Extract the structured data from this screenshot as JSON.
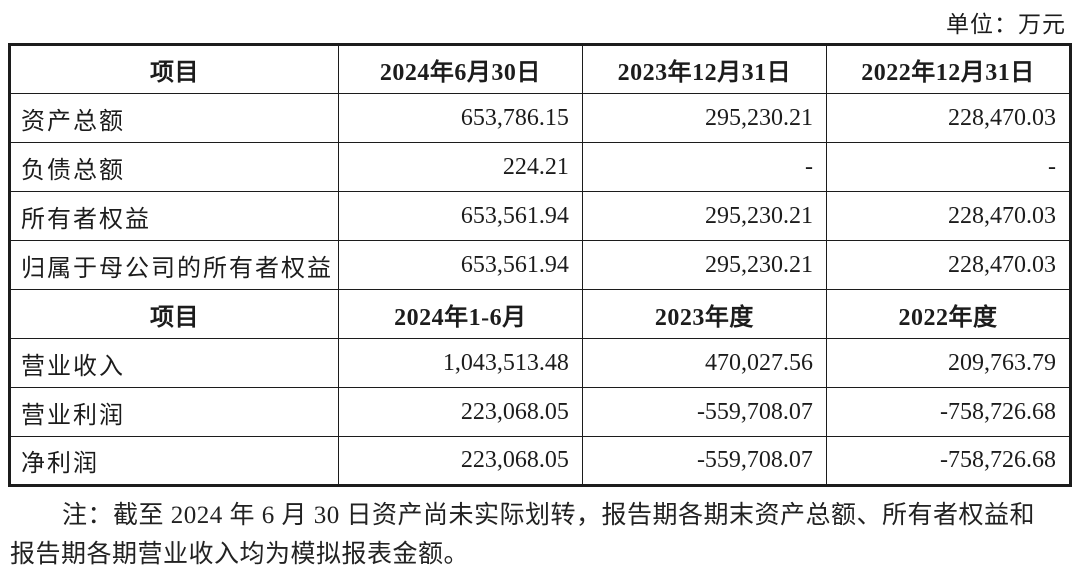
{
  "page": {
    "unit_label": "单位：万元"
  },
  "table": {
    "sections": [
      {
        "header": [
          "项目",
          "2024年6月30日",
          "2023年12月31日",
          "2022年12月31日"
        ],
        "rows": [
          {
            "label": "资产总额",
            "values": [
              "653,786.15",
              "295,230.21",
              "228,470.03"
            ]
          },
          {
            "label": "负债总额",
            "values": [
              "224.21",
              "-",
              "-"
            ]
          },
          {
            "label": "所有者权益",
            "values": [
              "653,561.94",
              "295,230.21",
              "228,470.03"
            ]
          },
          {
            "label": "归属于母公司的所有者权益",
            "values": [
              "653,561.94",
              "295,230.21",
              "228,470.03"
            ]
          }
        ]
      },
      {
        "header": [
          "项目",
          "2024年1-6月",
          "2023年度",
          "2022年度"
        ],
        "rows": [
          {
            "label": "营业收入",
            "values": [
              "1,043,513.48",
              "470,027.56",
              "209,763.79"
            ]
          },
          {
            "label": "营业利润",
            "values": [
              "223,068.05",
              "-559,708.07",
              "-758,726.68"
            ]
          },
          {
            "label": "净利润",
            "values": [
              "223,068.05",
              "-559,708.07",
              "-758,726.68"
            ]
          }
        ]
      }
    ]
  },
  "note": {
    "text": "注：截至 2024 年 6 月 30 日资产尚未实际划转，报告期各期末资产总额、所有者权益和报告期各期营业收入均为模拟报表金额。"
  },
  "colors": {
    "border": "#1c1c1c",
    "text": "#1c1c1c",
    "background": "#ffffff"
  }
}
